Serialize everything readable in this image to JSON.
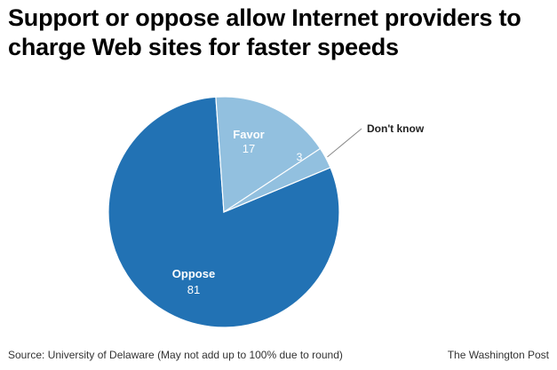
{
  "title": "Support or oppose allow Internet providers to charge Web sites for faster speeds",
  "source": "Source: University of Delaware (May not add up to 100% due to round)",
  "credit": "The Washington Post",
  "colors": {
    "oppose": "#2272b4",
    "favor": "#92c0df",
    "dont_know": "#92c0df",
    "edge": "#ffffff",
    "leader": "#888888"
  },
  "chart_data": {
    "type": "pie",
    "title": "Support or oppose allow Internet providers to charge Web sites for faster speeds",
    "slices": [
      {
        "label": "Oppose",
        "value": 81
      },
      {
        "label": "Favor",
        "value": 17
      },
      {
        "label": "Don't know",
        "value": 3
      }
    ]
  }
}
